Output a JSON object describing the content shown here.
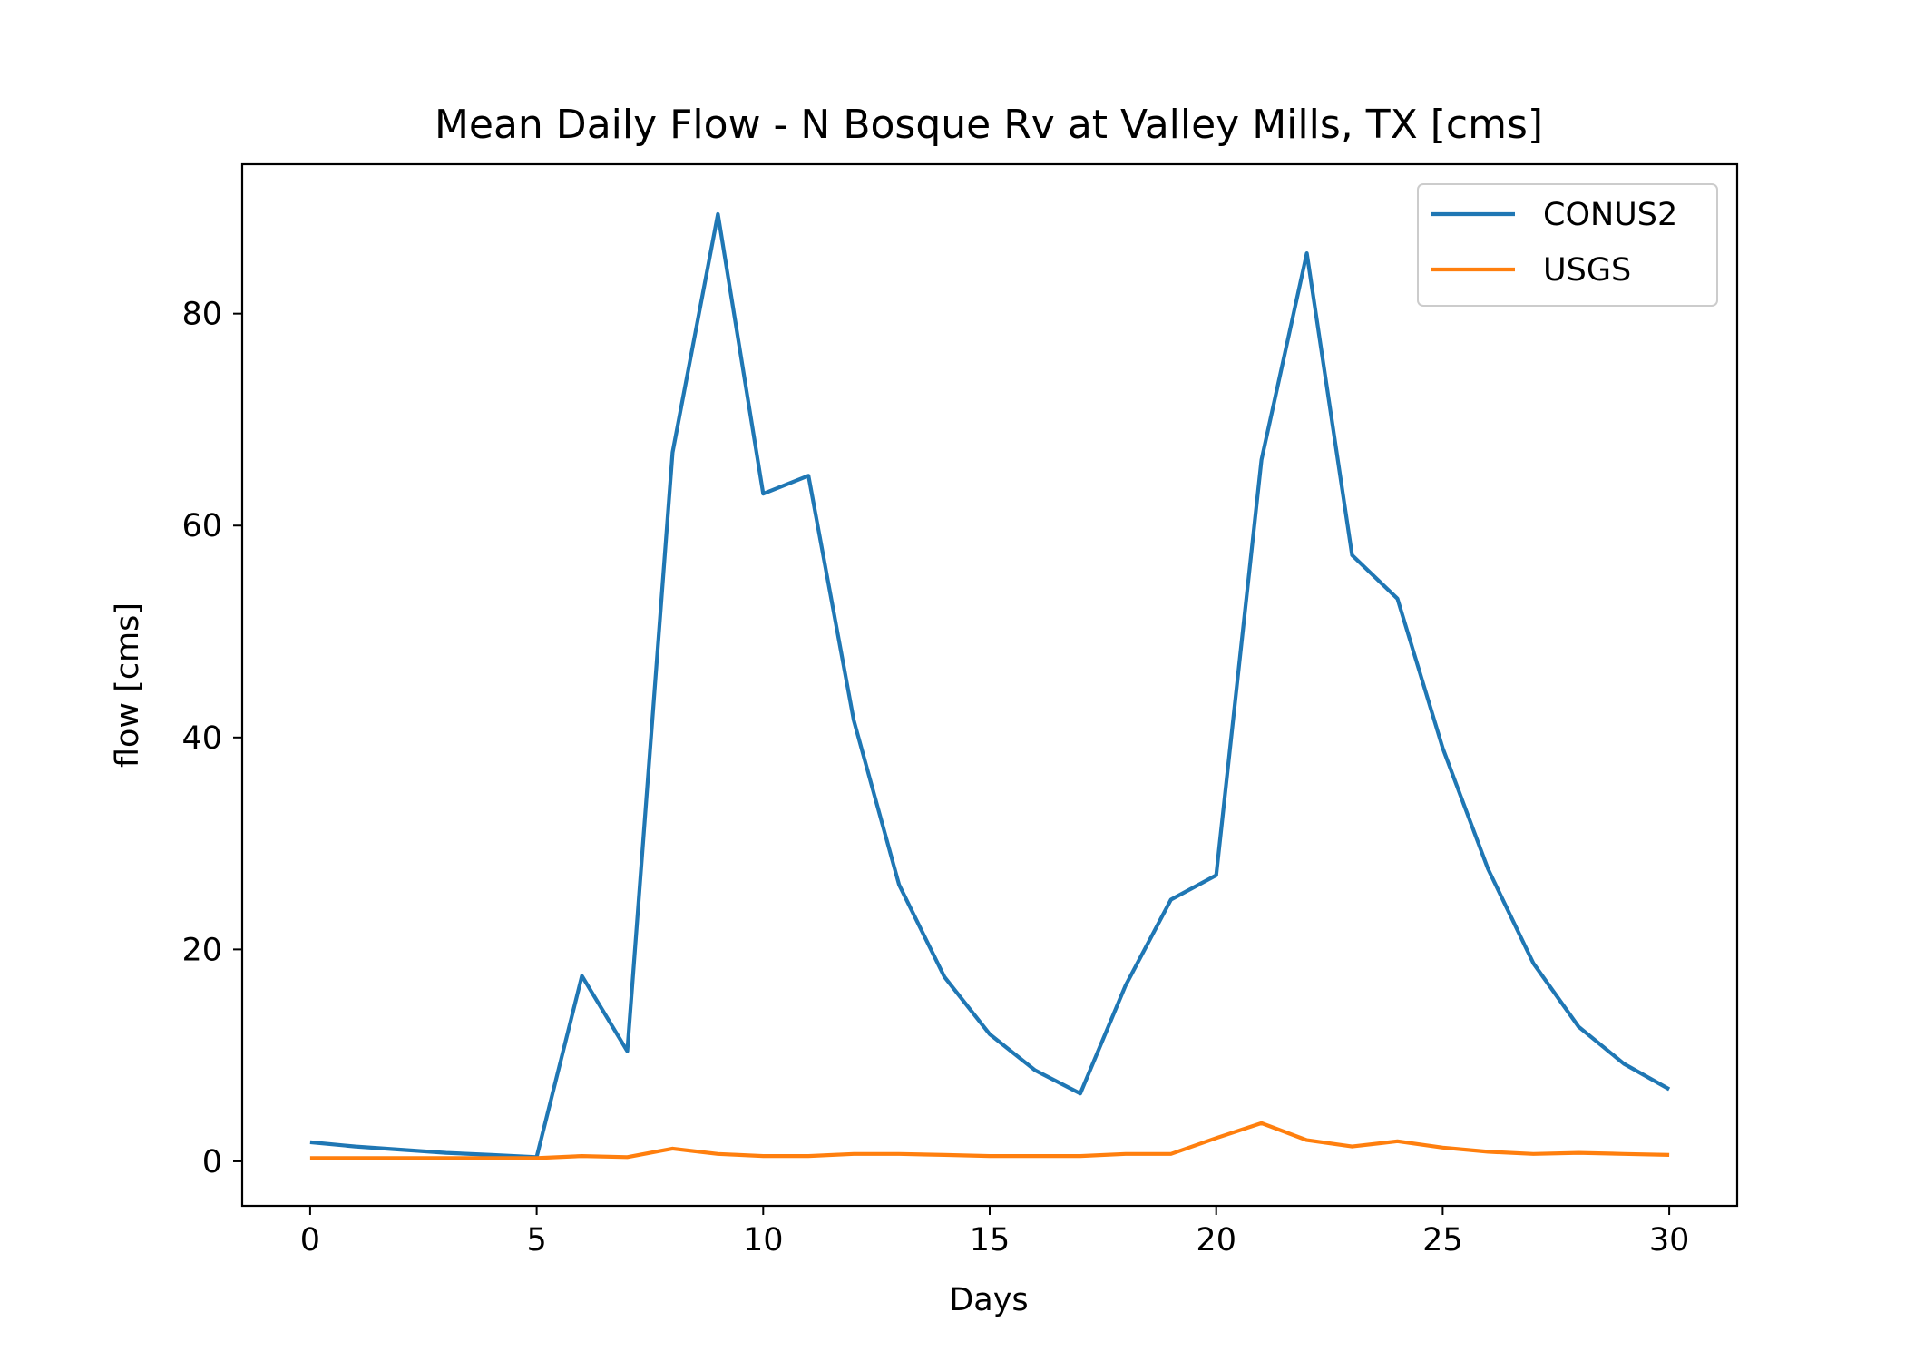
{
  "chart_data": {
    "type": "line",
    "title": "Mean Daily Flow - N Bosque Rv at Valley Mills, TX [cms]",
    "xlabel": "Days",
    "ylabel": "flow [cms]",
    "xlim": [
      -1.5,
      31.5
    ],
    "ylim": [
      -4.2,
      94.1
    ],
    "xticks": [
      0,
      5,
      10,
      15,
      20,
      25,
      30
    ],
    "yticks": [
      0,
      20,
      40,
      60,
      80
    ],
    "grid": false,
    "legend_position": "top-right",
    "x": [
      0,
      1,
      2,
      3,
      4,
      5,
      6,
      7,
      8,
      9,
      10,
      11,
      12,
      13,
      14,
      15,
      16,
      17,
      18,
      19,
      20,
      21,
      22,
      23,
      24,
      25,
      26,
      27,
      28,
      29,
      30
    ],
    "series": [
      {
        "name": "CONUS2",
        "color": "#1f77b4",
        "values": [
          1.8,
          1.4,
          1.1,
          0.8,
          0.6,
          0.4,
          17.5,
          10.4,
          66.9,
          89.4,
          63.0,
          64.7,
          41.6,
          26.1,
          17.4,
          12.0,
          8.6,
          6.4,
          16.6,
          24.7,
          27.0,
          66.2,
          85.7,
          57.2,
          53.1,
          39.0,
          27.6,
          18.7,
          12.7,
          9.2,
          6.8
        ]
      },
      {
        "name": "USGS",
        "color": "#ff7f0e",
        "values": [
          0.3,
          0.3,
          0.3,
          0.3,
          0.3,
          0.3,
          0.5,
          0.4,
          1.2,
          0.7,
          0.5,
          0.5,
          0.7,
          0.7,
          0.6,
          0.5,
          0.5,
          0.5,
          0.7,
          0.7,
          2.2,
          3.6,
          2.0,
          1.4,
          1.9,
          1.3,
          0.9,
          0.7,
          0.8,
          0.7,
          0.6
        ]
      }
    ]
  }
}
